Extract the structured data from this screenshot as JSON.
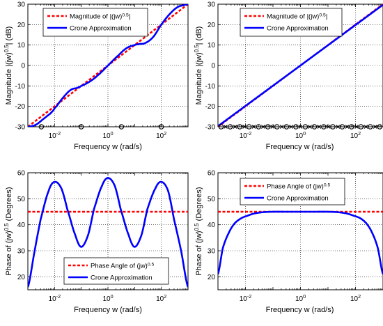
{
  "chart_data": [
    {
      "type": "line",
      "xscale": "log",
      "xlim": [
        0.001,
        1000
      ],
      "ylim": [
        -30,
        30
      ],
      "yticks": [
        -30,
        -20,
        -10,
        0,
        10,
        20,
        30
      ],
      "xticks": [
        "10^-2",
        "10^0",
        "10^2"
      ],
      "xlabel": "Frequency w (rad/s)",
      "ylabel": "Magnitude |(jw)^0.5| (dB)",
      "grid": true,
      "legend": "top-left",
      "series": [
        {
          "name": "Magnitude of |(jw)^0.5|",
          "color": "#ff0000",
          "style": "dashed",
          "x": [
            0.001,
            1000
          ],
          "y": [
            -30,
            30
          ]
        },
        {
          "name": "Crone Approximation",
          "color": "#0000ff",
          "style": "solid",
          "x": [
            0.001,
            0.002,
            0.004,
            0.007,
            0.01,
            0.02,
            0.04,
            0.07,
            0.1,
            0.2,
            0.4,
            1,
            2.5,
            5,
            10,
            15,
            25,
            50,
            100,
            200,
            400,
            700,
            1000
          ],
          "y": [
            -30,
            -29,
            -26,
            -23.5,
            -21,
            -16,
            -12,
            -11,
            -10,
            -8,
            -5,
            0,
            5,
            8.5,
            10,
            10.5,
            11,
            14,
            20,
            25,
            28.5,
            29.5,
            30
          ]
        },
        {
          "name": "",
          "color": "#000000",
          "style": "markers-o",
          "x": [
            0.0032,
            0.1,
            3.2,
            100
          ],
          "y": [
            -30,
            -30,
            -30,
            -30
          ]
        }
      ]
    },
    {
      "type": "line",
      "xscale": "log",
      "xlim": [
        0.001,
        1000
      ],
      "ylim": [
        -30,
        30
      ],
      "yticks": [
        -30,
        -20,
        -10,
        0,
        10,
        20,
        30
      ],
      "xticks": [
        "10^-2",
        "10^0",
        "10^2"
      ],
      "xlabel": "Frequency w (rad/s)",
      "ylabel": "Magnitude |(jw)^0.5| (dB)",
      "grid": true,
      "legend": "top-left",
      "series": [
        {
          "name": "Magnitude of |(jw)^0.5|",
          "color": "#ff0000",
          "style": "dashed",
          "x": [
            0.001,
            1000
          ],
          "y": [
            -30,
            30
          ]
        },
        {
          "name": "Crone Approximation",
          "color": "#0000ff",
          "style": "solid",
          "x": [
            0.001,
            1000
          ],
          "y": [
            -29.7,
            29.7
          ]
        },
        {
          "name": "",
          "color": "#000000",
          "style": "markers-o",
          "x": [
            0.0013,
            0.0028,
            0.0062,
            0.0135,
            0.03,
            0.065,
            0.14,
            0.31,
            0.68,
            1.5,
            3.2,
            7,
            15,
            33,
            72,
            158,
            345,
            760
          ],
          "y": [
            -30,
            -30,
            -30,
            -30,
            -30,
            -30,
            -30,
            -30,
            -30,
            -30,
            -30,
            -30,
            -30,
            -30,
            -30,
            -30,
            -30,
            -30
          ]
        },
        {
          "name": "",
          "color": "#000000",
          "style": "markers-x",
          "x": [
            0.0019,
            0.0042,
            0.0092,
            0.02,
            0.044,
            0.096,
            0.21,
            0.46,
            1,
            2.2,
            4.8,
            10.5,
            23,
            50,
            110,
            240,
            520
          ],
          "y": [
            -30,
            -30,
            -30,
            -30,
            -30,
            -30,
            -30,
            -30,
            -30,
            -30,
            -30,
            -30,
            -30,
            -30,
            -30,
            -30,
            -30
          ]
        }
      ]
    },
    {
      "type": "line",
      "xscale": "log",
      "xlim": [
        0.001,
        1000
      ],
      "ylim": [
        15,
        60
      ],
      "yticks": [
        20,
        30,
        40,
        50,
        60
      ],
      "xticks": [
        "10^-2",
        "10^0",
        "10^2"
      ],
      "xlabel": "Frequency w (rad/s)",
      "ylabel": "Phase of (jw)^0.5 (Degrees)",
      "grid": true,
      "legend": "bottom-center",
      "series": [
        {
          "name": "Phase Angle of (jw)^0.5",
          "color": "#ff0000",
          "style": "dashed",
          "x": [
            0.001,
            1000
          ],
          "y": [
            45,
            45
          ]
        },
        {
          "name": "Crone Approximation",
          "color": "#0000ff",
          "style": "solid",
          "x": [
            0.001,
            0.0018,
            0.003,
            0.006,
            0.01,
            0.018,
            0.03,
            0.06,
            0.1,
            0.18,
            0.3,
            0.6,
            1,
            1.8,
            3,
            6,
            10,
            18,
            30,
            60,
            100,
            180,
            300,
            550,
            1000
          ],
          "y": [
            16,
            30,
            42,
            53,
            56.5,
            54,
            46,
            36,
            31.5,
            36,
            46,
            55,
            58,
            55,
            46,
            36,
            31.5,
            36,
            46,
            54,
            56.5,
            53,
            42,
            30,
            16
          ]
        }
      ]
    },
    {
      "type": "line",
      "xscale": "log",
      "xlim": [
        0.001,
        1000
      ],
      "ylim": [
        15,
        60
      ],
      "yticks": [
        20,
        30,
        40,
        50,
        60
      ],
      "xticks": [
        "10^-2",
        "10^0",
        "10^2"
      ],
      "xlabel": "Frequency w (rad/s)",
      "ylabel": "Phase of (jw)^0.5 (Degrees)",
      "grid": true,
      "legend": "top-left",
      "series": [
        {
          "name": "Phase Angle of (jw)^0.5",
          "color": "#ff0000",
          "style": "dashed",
          "x": [
            0.001,
            1000
          ],
          "y": [
            45,
            45
          ]
        },
        {
          "name": "Crone Approximation",
          "color": "#0000ff",
          "style": "solid",
          "x": [
            0.001,
            0.0015,
            0.0025,
            0.004,
            0.007,
            0.012,
            0.02,
            0.04,
            0.1,
            0.3,
            1,
            3,
            10,
            25,
            50,
            85,
            150,
            250,
            400,
            650,
            1000
          ],
          "y": [
            21,
            31,
            37,
            40.5,
            42.5,
            43.5,
            44.3,
            44.8,
            45,
            45,
            45,
            45,
            45,
            44.8,
            44.3,
            43.5,
            42.5,
            40.5,
            37,
            31,
            21
          ]
        }
      ]
    }
  ]
}
